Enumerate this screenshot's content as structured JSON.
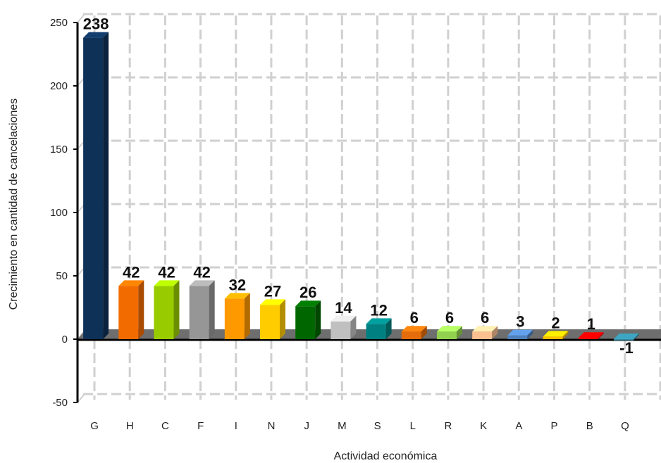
{
  "chart_data": {
    "type": "bar",
    "xlabel": "Actividad económica",
    "ylabel": "Crecimiento en cantidad de cancelaciones",
    "ylim": [
      -50,
      250
    ],
    "yticks": [
      -50,
      0,
      50,
      100,
      150,
      200,
      250
    ],
    "grid": true,
    "categories": [
      "G",
      "H",
      "C",
      "F",
      "I",
      "N",
      "J",
      "M",
      "S",
      "L",
      "R",
      "K",
      "A",
      "P",
      "B",
      "Q"
    ],
    "values": [
      238,
      42,
      42,
      42,
      32,
      27,
      26,
      14,
      12,
      6,
      6,
      6,
      3,
      2,
      1,
      -1
    ],
    "colors": [
      "#0e3158",
      "#f26b00",
      "#99cc00",
      "#969696",
      "#ff9900",
      "#ffcc00",
      "#006600",
      "#c0c0c0",
      "#008080",
      "#e46c0a",
      "#92d050",
      "#fac090",
      "#4f81bd",
      "#ffc000",
      "#ff0000",
      "#31859c"
    ]
  }
}
